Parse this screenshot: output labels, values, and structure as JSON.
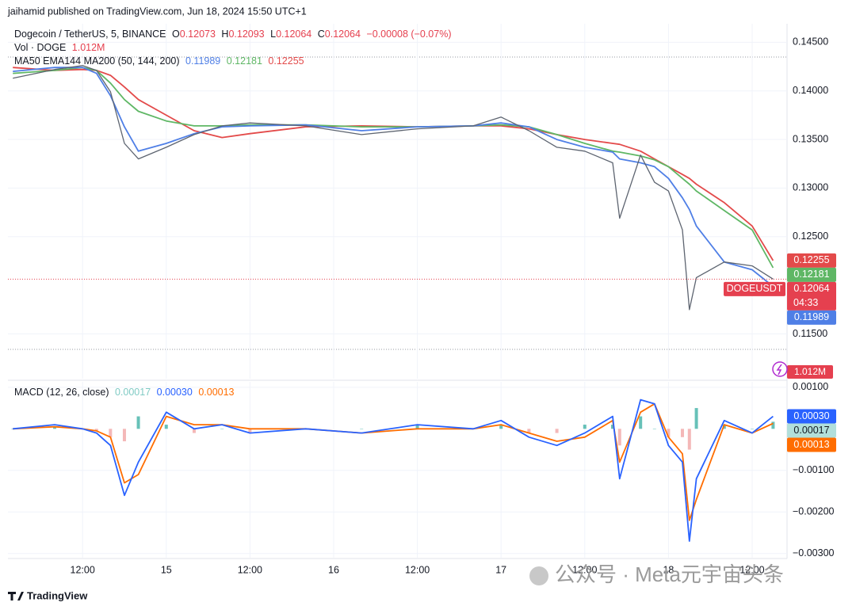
{
  "header": {
    "byline": "jaihamid published on TradingView.com, Jun 18, 2024 15:50 UTC+1",
    "brand": "TradingView",
    "watermark": "公众号 · Meta元宇宙头条"
  },
  "chart_data": [
    {
      "type": "line",
      "title": "Dogecoin / TetherUS, 5, BINANCE",
      "ohlc": [
        {
          "label": "O",
          "value": "0.12073"
        },
        {
          "label": "H",
          "value": "0.12093"
        },
        {
          "label": "L",
          "value": "0.12064"
        },
        {
          "label": "C",
          "value": "0.12064"
        }
      ],
      "change": "−0.00008 (−0.07%)",
      "volume": {
        "title": "Vol · DOGE",
        "value": "1.012M"
      },
      "indicator_params": "(50, 144, 200)",
      "countdown": "04:33",
      "grid": true,
      "x": [
        2,
        8,
        12,
        14,
        16,
        18,
        20,
        24,
        28,
        32,
        36,
        44,
        52,
        60,
        68,
        72,
        76,
        80,
        84,
        88,
        89,
        92,
        94,
        96,
        98,
        99,
        100,
        104,
        108,
        111
      ],
      "xlim": [
        1.3,
        113
      ],
      "xticks": [
        {
          "value": 12,
          "label": "12:00"
        },
        {
          "value": 24,
          "label": "15"
        },
        {
          "value": 36,
          "label": "12:00"
        },
        {
          "value": 48,
          "label": "16"
        },
        {
          "value": 60,
          "label": "12:00"
        },
        {
          "value": 72,
          "label": "17"
        },
        {
          "value": 84,
          "label": "12:00"
        },
        {
          "value": 96,
          "label": "18"
        },
        {
          "value": 108,
          "label": "12:00"
        }
      ],
      "ylim": [
        0.1104,
        0.1469
      ],
      "yticks": [
        {
          "value": 0.115,
          "label": "0.11500"
        },
        {
          "value": 0.125,
          "label": "0.12500"
        },
        {
          "value": 0.13,
          "label": "0.13000"
        },
        {
          "value": 0.135,
          "label": "0.13500"
        },
        {
          "value": 0.14,
          "label": "0.14000"
        },
        {
          "value": 0.145,
          "label": "0.14500"
        }
      ],
      "series": [
        {
          "name": "DOGEUSDT",
          "color": "#e5404f",
          "line_color": "#5d6470",
          "values": [
            0.1413,
            0.1422,
            0.1426,
            0.1421,
            0.1399,
            0.1346,
            0.133,
            0.1342,
            0.1355,
            0.1364,
            0.1367,
            0.1364,
            0.1355,
            0.1361,
            0.1364,
            0.1373,
            0.1359,
            0.1342,
            0.1338,
            0.1326,
            0.1269,
            0.1334,
            0.1306,
            0.1297,
            0.1257,
            0.1175,
            0.1208,
            0.1224,
            0.122,
            0.12064
          ]
        },
        {
          "name": "MA50",
          "color": "#4f7fe6",
          "values": [
            0.142,
            0.1424,
            0.1424,
            0.1418,
            0.1395,
            0.1363,
            0.1338,
            0.1346,
            0.1356,
            0.1363,
            0.1364,
            0.1365,
            0.1359,
            0.1363,
            0.1364,
            0.1367,
            0.1363,
            0.135,
            0.1342,
            0.1337,
            0.133,
            0.1326,
            0.1322,
            0.131,
            0.129,
            0.1278,
            0.1261,
            0.1224,
            0.1216,
            0.11989
          ]
        },
        {
          "name": "EMA144",
          "color": "#5fb765",
          "values": [
            0.1418,
            0.1421,
            0.1424,
            0.1421,
            0.1408,
            0.1391,
            0.1379,
            0.1369,
            0.1364,
            0.1364,
            0.1365,
            0.1365,
            0.1363,
            0.1363,
            0.1364,
            0.1365,
            0.1363,
            0.1355,
            0.1346,
            0.1338,
            0.1337,
            0.1333,
            0.1329,
            0.1322,
            0.131,
            0.1304,
            0.1297,
            0.1277,
            0.1257,
            0.12181
          ]
        },
        {
          "name": "MA200",
          "color": "#e34a4a",
          "values": [
            0.1424,
            0.1421,
            0.1422,
            0.1421,
            0.1416,
            0.1404,
            0.1391,
            0.1375,
            0.1359,
            0.1352,
            0.1356,
            0.1363,
            0.1364,
            0.1363,
            0.1364,
            0.1364,
            0.1361,
            0.1355,
            0.135,
            0.1346,
            0.1345,
            0.1338,
            0.133,
            0.1322,
            0.1314,
            0.131,
            0.1304,
            0.1285,
            0.1261,
            0.12255
          ]
        }
      ]
    },
    {
      "type": "line",
      "title": "MACD (12, 26, close)",
      "grid": true,
      "ylim": [
        -0.0031,
        0.00113
      ],
      "yticks": [
        {
          "value": -0.003,
          "label": "−0.00300"
        },
        {
          "value": -0.002,
          "label": "−0.00200"
        },
        {
          "value": -0.001,
          "label": "−0.00100"
        },
        {
          "value": 0.001,
          "label": "0.00100"
        }
      ],
      "histogram": {
        "color_up": "#26a69a",
        "color_down": "#ef9a9a",
        "values": [
          0,
          5e-05,
          0,
          -5e-05,
          -0.0002,
          -0.0003,
          0.0003,
          0.0001,
          -0.0001,
          0,
          -0.0001,
          0,
          0,
          0.0001,
          0,
          0.0001,
          -0.0001,
          -0.0001,
          0.0001,
          0.0001,
          -0.0004,
          0.0003,
          0,
          -0.0002,
          -0.0002,
          -0.0005,
          0.0005,
          0.0001,
          0,
          0.00017
        ]
      },
      "series": [
        {
          "color": "#2962ff",
          "values": [
            0,
            0.0001,
            0,
            -0.0001,
            -0.0004,
            -0.0016,
            -0.0008,
            0.0004,
            0,
            0.0001,
            -0.0001,
            0,
            -0.0001,
            0.0001,
            0,
            0.0002,
            -0.0002,
            -0.0004,
            -0.0001,
            0.0003,
            -0.0012,
            0.0007,
            0.0006,
            -0.0004,
            -0.0008,
            -0.0027,
            -0.0012,
            0.0002,
            -0.0001,
            0.0003
          ],
          "last_label": "0.00030"
        },
        {
          "color": "#ff6d00",
          "values": [
            0,
            5e-05,
            0,
            -5e-05,
            -0.0002,
            -0.0013,
            -0.0011,
            0.0003,
            0.0001,
            0.0001,
            0,
            0,
            -0.0001,
            0,
            0,
            0.0001,
            -0.0001,
            -0.0003,
            -0.0002,
            0.0002,
            -0.0008,
            0.0004,
            0.0006,
            -0.0002,
            -0.0006,
            -0.0022,
            -0.0017,
            0.0001,
            -0.0001,
            0.00013
          ]
        }
      ]
    }
  ]
}
